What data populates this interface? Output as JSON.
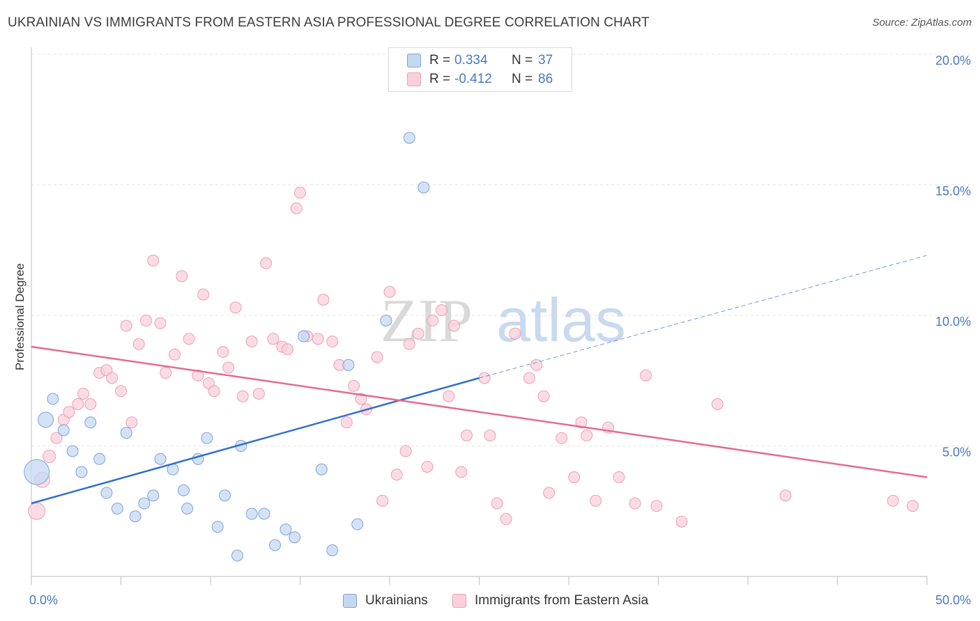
{
  "title": "UKRAINIAN VS IMMIGRANTS FROM EASTERN ASIA PROFESSIONAL DEGREE CORRELATION CHART",
  "source": "Source: ZipAtlas.com",
  "watermark": {
    "zip": "ZIP",
    "atlas": "atlas"
  },
  "legend": {
    "rows": [
      {
        "r_label": "R =",
        "r_value": "0.334",
        "n_label": "N =",
        "n_value": "37"
      },
      {
        "r_label": "R =",
        "r_value": "-0.412",
        "n_label": "N =",
        "n_value": "86"
      }
    ]
  },
  "colors": {
    "blue_fill": "#c5d8f2",
    "blue_stroke": "#7ea3dc",
    "blue_line": "#2f6fcc",
    "pink_fill": "#f9d0dc",
    "pink_stroke": "#ec9fb6",
    "pink_line": "#e46a92",
    "axis_text": "#4a78c2",
    "grid": "#e3e3e3"
  },
  "chart_data": {
    "type": "scatter",
    "title": "UKRAINIAN VS IMMIGRANTS FROM EASTERN ASIA PROFESSIONAL DEGREE CORRELATION CHART",
    "xlabel": "",
    "ylabel": "Professional Degree",
    "xlim": [
      0,
      50
    ],
    "ylim": [
      0,
      20
    ],
    "x_tick_labels": [
      "0.0%",
      "50.0%"
    ],
    "y_ticks": [
      5,
      10,
      15,
      20
    ],
    "y_tick_labels": [
      "5.0%",
      "10.0%",
      "15.0%",
      "20.0%"
    ],
    "grid": true,
    "legend_position": "top-center",
    "series": [
      {
        "name": "Ukrainians",
        "color": "#7ea3dc",
        "r": 0.334,
        "n": 37,
        "trend": {
          "x": [
            0,
            25
          ],
          "y": [
            2.8,
            7.6
          ],
          "dashed_extension_to": [
            50,
            12.3
          ]
        },
        "points": [
          [
            0.3,
            4.0,
            18
          ],
          [
            0.8,
            6.0,
            11
          ],
          [
            1.2,
            6.8,
            8
          ],
          [
            1.8,
            5.6,
            8
          ],
          [
            2.3,
            4.8,
            8
          ],
          [
            2.8,
            4.0,
            8
          ],
          [
            3.3,
            5.9,
            8
          ],
          [
            3.8,
            4.5,
            8
          ],
          [
            4.2,
            3.2,
            8
          ],
          [
            4.8,
            2.6,
            8
          ],
          [
            5.3,
            5.5,
            8
          ],
          [
            5.8,
            2.3,
            8
          ],
          [
            6.3,
            2.8,
            8
          ],
          [
            6.8,
            3.1,
            8
          ],
          [
            7.2,
            4.5,
            8
          ],
          [
            7.9,
            4.1,
            8
          ],
          [
            8.5,
            3.3,
            8
          ],
          [
            8.7,
            2.6,
            8
          ],
          [
            9.3,
            4.5,
            8
          ],
          [
            9.8,
            5.3,
            8
          ],
          [
            10.4,
            1.9,
            8
          ],
          [
            10.8,
            3.1,
            8
          ],
          [
            11.5,
            0.8,
            8
          ],
          [
            11.7,
            5.0,
            8
          ],
          [
            12.3,
            2.4,
            8
          ],
          [
            13.0,
            2.4,
            8
          ],
          [
            13.6,
            1.2,
            8
          ],
          [
            14.2,
            1.8,
            8
          ],
          [
            14.7,
            1.5,
            8
          ],
          [
            15.2,
            9.2,
            8
          ],
          [
            16.2,
            4.1,
            8
          ],
          [
            16.8,
            1.0,
            8
          ],
          [
            17.7,
            8.1,
            8
          ],
          [
            18.2,
            2.0,
            8
          ],
          [
            19.8,
            9.8,
            8
          ],
          [
            21.1,
            16.8,
            8
          ],
          [
            21.9,
            14.9,
            8
          ]
        ]
      },
      {
        "name": "Immigrants from Eastern Asia",
        "color": "#ec9fb6",
        "r": -0.412,
        "n": 86,
        "trend": {
          "x": [
            0,
            50
          ],
          "y": [
            8.8,
            3.8
          ]
        },
        "points": [
          [
            0.3,
            2.5,
            12
          ],
          [
            0.6,
            3.7,
            11
          ],
          [
            1.0,
            4.6,
            9
          ],
          [
            1.4,
            5.3,
            8
          ],
          [
            1.8,
            6.0,
            8
          ],
          [
            2.1,
            6.3,
            8
          ],
          [
            2.6,
            6.6,
            8
          ],
          [
            2.9,
            7.0,
            8
          ],
          [
            3.3,
            6.6,
            8
          ],
          [
            3.8,
            7.8,
            8
          ],
          [
            4.2,
            7.9,
            8
          ],
          [
            4.5,
            7.6,
            8
          ],
          [
            5.0,
            7.1,
            8
          ],
          [
            5.3,
            9.6,
            8
          ],
          [
            5.6,
            5.9,
            8
          ],
          [
            6.0,
            8.9,
            8
          ],
          [
            6.4,
            9.8,
            8
          ],
          [
            6.8,
            12.1,
            8
          ],
          [
            7.2,
            9.7,
            8
          ],
          [
            7.5,
            7.8,
            8
          ],
          [
            8.0,
            8.5,
            8
          ],
          [
            8.4,
            11.5,
            8
          ],
          [
            8.8,
            9.1,
            8
          ],
          [
            9.3,
            7.7,
            8
          ],
          [
            9.6,
            10.8,
            8
          ],
          [
            9.9,
            7.4,
            8
          ],
          [
            10.2,
            7.1,
            8
          ],
          [
            10.7,
            8.6,
            8
          ],
          [
            11.0,
            8.0,
            8
          ],
          [
            11.4,
            10.3,
            8
          ],
          [
            11.8,
            6.9,
            8
          ],
          [
            12.3,
            9.0,
            8
          ],
          [
            12.7,
            7.0,
            8
          ],
          [
            13.1,
            12.0,
            8
          ],
          [
            13.5,
            9.1,
            8
          ],
          [
            14.0,
            8.8,
            8
          ],
          [
            14.3,
            8.7,
            8
          ],
          [
            14.8,
            14.1,
            8
          ],
          [
            15.0,
            14.7,
            8
          ],
          [
            15.4,
            9.2,
            8
          ],
          [
            16.0,
            9.1,
            8
          ],
          [
            16.3,
            10.6,
            8
          ],
          [
            16.8,
            9.0,
            8
          ],
          [
            17.2,
            8.1,
            8
          ],
          [
            17.6,
            5.9,
            8
          ],
          [
            18.0,
            7.3,
            8
          ],
          [
            18.4,
            6.8,
            8
          ],
          [
            18.7,
            6.4,
            8
          ],
          [
            19.3,
            8.4,
            8
          ],
          [
            19.6,
            2.9,
            8
          ],
          [
            20.0,
            10.9,
            8
          ],
          [
            20.4,
            3.9,
            8
          ],
          [
            20.9,
            4.8,
            8
          ],
          [
            21.1,
            8.9,
            8
          ],
          [
            21.6,
            9.3,
            8
          ],
          [
            22.1,
            4.2,
            8
          ],
          [
            22.4,
            9.8,
            8
          ],
          [
            22.9,
            10.2,
            8
          ],
          [
            23.3,
            6.9,
            8
          ],
          [
            23.6,
            9.6,
            8
          ],
          [
            24.0,
            4.0,
            8
          ],
          [
            24.3,
            5.4,
            8
          ],
          [
            25.3,
            7.6,
            8
          ],
          [
            25.6,
            5.4,
            8
          ],
          [
            26.0,
            2.8,
            8
          ],
          [
            26.5,
            2.2,
            8
          ],
          [
            27.0,
            9.3,
            8
          ],
          [
            27.8,
            7.6,
            8
          ],
          [
            28.2,
            8.1,
            8
          ],
          [
            28.6,
            6.9,
            8
          ],
          [
            28.9,
            3.2,
            8
          ],
          [
            29.6,
            5.3,
            8
          ],
          [
            30.3,
            3.8,
            8
          ],
          [
            30.7,
            5.9,
            8
          ],
          [
            31.0,
            5.4,
            8
          ],
          [
            31.5,
            2.9,
            8
          ],
          [
            32.2,
            5.7,
            8
          ],
          [
            32.8,
            3.8,
            8
          ],
          [
            33.7,
            2.8,
            8
          ],
          [
            34.3,
            7.7,
            8
          ],
          [
            34.9,
            2.7,
            8
          ],
          [
            36.3,
            2.1,
            8
          ],
          [
            38.3,
            6.6,
            8
          ],
          [
            42.1,
            3.1,
            8
          ],
          [
            48.1,
            2.9,
            8
          ],
          [
            49.2,
            2.7,
            8
          ]
        ]
      }
    ]
  },
  "bottom_legend": [
    {
      "label": "Ukrainians"
    },
    {
      "label": "Immigrants from Eastern Asia"
    }
  ]
}
